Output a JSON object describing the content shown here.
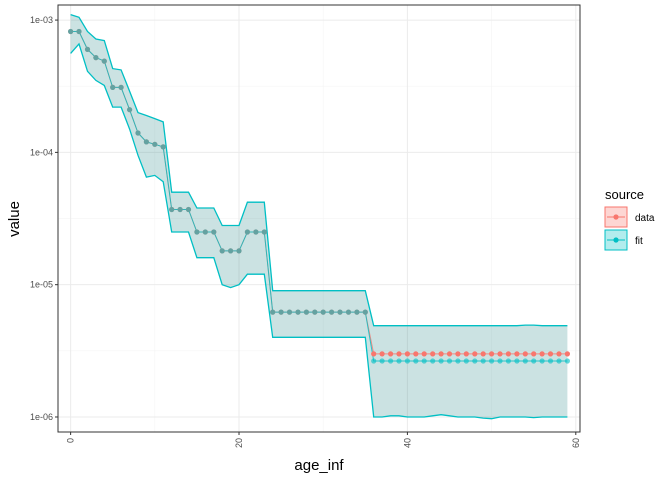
{
  "chart_data": {
    "type": "line",
    "xlabel": "age_inf",
    "ylabel": "value",
    "x_scale": "linear",
    "y_scale": "log10",
    "xlim": [
      -1.5,
      60.5
    ],
    "ylim": [
      7.7e-07,
      0.0013
    ],
    "x_ticks": [
      0,
      20,
      40,
      60
    ],
    "x_tick_labels": [
      "0",
      "20",
      "40",
      "60"
    ],
    "y_ticks": [
      1e-06,
      1e-05,
      0.0001,
      0.001
    ],
    "y_tick_labels": [
      "1e-06",
      "1e-05",
      "1e-04",
      "1e-03"
    ],
    "grid": true,
    "legend": {
      "title": "source",
      "position": "right",
      "entries": [
        {
          "label": "data",
          "color": "#F8766D"
        },
        {
          "label": "fit",
          "color": "#00BFC4"
        }
      ]
    },
    "series": [
      {
        "name": "data",
        "color": "#F8766D",
        "x": [
          0,
          1,
          2,
          3,
          4,
          5,
          6,
          7,
          8,
          9,
          10,
          11,
          12,
          13,
          14,
          15,
          16,
          17,
          18,
          19,
          20,
          21,
          22,
          23,
          24,
          25,
          26,
          27,
          28,
          29,
          30,
          31,
          32,
          33,
          34,
          35,
          36,
          37,
          38,
          39,
          40,
          41,
          42,
          43,
          44,
          45,
          46,
          47,
          48,
          49,
          50,
          51,
          52,
          53,
          54,
          55,
          56,
          57,
          58,
          59
        ],
        "y": [
          0.00082,
          0.00082,
          0.0006,
          0.00052,
          0.00049,
          0.00031,
          0.00031,
          0.00021,
          0.00014,
          0.00012,
          0.000115,
          0.00011,
          3.7e-05,
          3.7e-05,
          3.7e-05,
          2.5e-05,
          2.5e-05,
          2.5e-05,
          1.8e-05,
          1.8e-05,
          1.8e-05,
          2.5e-05,
          2.5e-05,
          2.5e-05,
          6.2e-06,
          6.2e-06,
          6.2e-06,
          6.2e-06,
          6.2e-06,
          6.2e-06,
          6.2e-06,
          6.2e-06,
          6.2e-06,
          6.2e-06,
          6.2e-06,
          6.2e-06,
          3e-06,
          3e-06,
          3e-06,
          3e-06,
          3e-06,
          3e-06,
          3e-06,
          3e-06,
          3e-06,
          3e-06,
          3e-06,
          3e-06,
          3e-06,
          3e-06,
          3e-06,
          3e-06,
          3e-06,
          3e-06,
          3e-06,
          3e-06,
          3e-06,
          3e-06,
          3e-06,
          3e-06
        ]
      },
      {
        "name": "fit",
        "color": "#00BFC4",
        "x": [
          0,
          1,
          2,
          3,
          4,
          5,
          6,
          7,
          8,
          9,
          10,
          11,
          12,
          13,
          14,
          15,
          16,
          17,
          18,
          19,
          20,
          21,
          22,
          23,
          24,
          25,
          26,
          27,
          28,
          29,
          30,
          31,
          32,
          33,
          34,
          35,
          36,
          37,
          38,
          39,
          40,
          41,
          42,
          43,
          44,
          45,
          46,
          47,
          48,
          49,
          50,
          51,
          52,
          53,
          54,
          55,
          56,
          57,
          58,
          59
        ],
        "y": [
          0.00082,
          0.00082,
          0.0006,
          0.00052,
          0.00049,
          0.00031,
          0.00031,
          0.00021,
          0.00014,
          0.00012,
          0.000115,
          0.00011,
          3.7e-05,
          3.7e-05,
          3.7e-05,
          2.5e-05,
          2.5e-05,
          2.5e-05,
          1.8e-05,
          1.8e-05,
          1.8e-05,
          2.5e-05,
          2.5e-05,
          2.5e-05,
          6.2e-06,
          6.2e-06,
          6.2e-06,
          6.2e-06,
          6.2e-06,
          6.2e-06,
          6.2e-06,
          6.2e-06,
          6.2e-06,
          6.2e-06,
          6.2e-06,
          6.2e-06,
          2.65e-06,
          2.65e-06,
          2.65e-06,
          2.65e-06,
          2.65e-06,
          2.65e-06,
          2.65e-06,
          2.65e-06,
          2.65e-06,
          2.65e-06,
          2.65e-06,
          2.65e-06,
          2.65e-06,
          2.65e-06,
          2.65e-06,
          2.65e-06,
          2.65e-06,
          2.65e-06,
          2.65e-06,
          2.65e-06,
          2.65e-06,
          2.65e-06,
          2.65e-06,
          2.65e-06
        ],
        "lower": [
          0.00056,
          0.00066,
          0.00041,
          0.00035,
          0.00032,
          0.00022,
          0.00022,
          0.00015,
          9.5e-05,
          6.5e-05,
          6.7e-05,
          6e-05,
          2.5e-05,
          2.5e-05,
          2.5e-05,
          1.6e-05,
          1.6e-05,
          1.6e-05,
          1e-05,
          9.5e-06,
          1e-05,
          1.2e-05,
          1.2e-05,
          1.2e-05,
          4e-06,
          4e-06,
          4e-06,
          4e-06,
          4e-06,
          4e-06,
          4e-06,
          4e-06,
          4e-06,
          4e-06,
          4e-06,
          4e-06,
          1e-06,
          1e-06,
          1.02e-06,
          1.02e-06,
          1e-06,
          1e-06,
          1e-06,
          1.02e-06,
          1.04e-06,
          1.02e-06,
          1e-06,
          1e-06,
          1e-06,
          9.8e-07,
          9.7e-07,
          1e-06,
          1e-06,
          1e-06,
          1e-06,
          9.9e-07,
          1e-06,
          1e-06,
          1e-06,
          1e-06
        ],
        "upper": [
          0.0011,
          0.00105,
          0.00082,
          0.00072,
          0.0007,
          0.00043,
          0.00042,
          0.00029,
          0.0002,
          0.00019,
          0.00018,
          0.00017,
          5e-05,
          5e-05,
          5e-05,
          3.8e-05,
          3.8e-05,
          3.8e-05,
          2.8e-05,
          2.8e-05,
          2.8e-05,
          4.2e-05,
          4.2e-05,
          4.2e-05,
          9e-06,
          9e-06,
          9e-06,
          9e-06,
          9e-06,
          9e-06,
          9e-06,
          9e-06,
          9e-06,
          9e-06,
          9e-06,
          9e-06,
          4.9e-06,
          4.9e-06,
          4.9e-06,
          4.9e-06,
          4.9e-06,
          4.9e-06,
          4.9e-06,
          4.9e-06,
          4.9e-06,
          4.9e-06,
          4.9e-06,
          4.9e-06,
          4.9e-06,
          4.9e-06,
          4.9e-06,
          4.9e-06,
          4.9e-06,
          4.9e-06,
          4.95e-06,
          4.95e-06,
          4.9e-06,
          4.9e-06,
          4.9e-06,
          4.9e-06
        ]
      }
    ]
  }
}
